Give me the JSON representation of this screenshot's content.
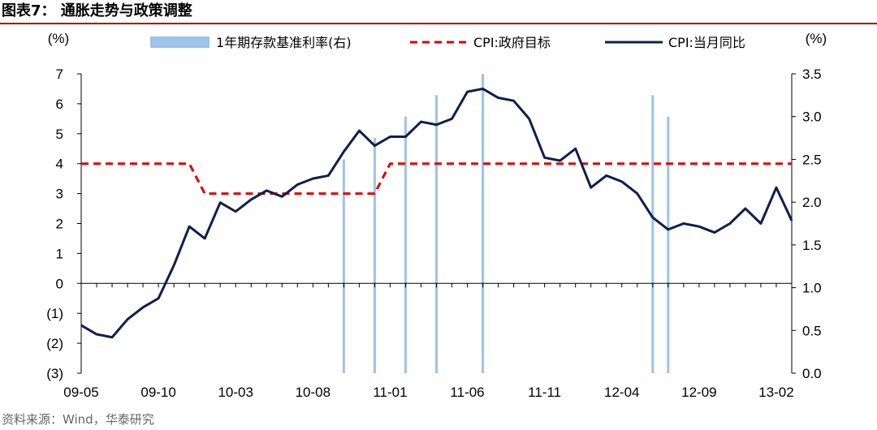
{
  "header": {
    "title": "图表7：  通胀走势与政策调整"
  },
  "footer": {
    "source": "资料来源：Wind，华泰研究"
  },
  "chart_data": {
    "type": "line",
    "left_unit": "(%)",
    "right_unit": "(%)",
    "left_axis": {
      "min": -3,
      "max": 7,
      "ticks": [
        "(3)",
        "(2)",
        "(1)",
        "0",
        "1",
        "2",
        "3",
        "4",
        "5",
        "6",
        "7"
      ]
    },
    "right_axis": {
      "min": 0.0,
      "max": 3.5,
      "ticks": [
        "0.0",
        "0.5",
        "1.0",
        "1.5",
        "2.0",
        "2.5",
        "3.0",
        "3.5"
      ]
    },
    "x_tick_labels": [
      "09-05",
      "09-10",
      "10-03",
      "10-08",
      "11-01",
      "11-06",
      "11-11",
      "12-04",
      "12-09",
      "13-02"
    ],
    "series": [
      {
        "name": "1年期存款基准利率(右)",
        "axis": "right",
        "style": "bar",
        "color": "#9dc3e6",
        "points": [
          {
            "x": "10-10",
            "y": 2.5
          },
          {
            "x": "10-12",
            "y": 2.75
          },
          {
            "x": "11-02",
            "y": 3.0
          },
          {
            "x": "11-04",
            "y": 3.25
          },
          {
            "x": "11-07",
            "y": 3.5
          },
          {
            "x": "12-06",
            "y": 3.25
          },
          {
            "x": "12-07",
            "y": 3.0
          }
        ]
      },
      {
        "name": "CPI:政府目标",
        "axis": "left",
        "style": "dashed",
        "color": "#e00000",
        "points": [
          {
            "x": "09-05",
            "y": 4.0
          },
          {
            "x": "09-12",
            "y": 4.0
          },
          {
            "x": "10-01",
            "y": 3.0
          },
          {
            "x": "10-12",
            "y": 3.0
          },
          {
            "x": "11-01",
            "y": 4.0
          },
          {
            "x": "13-03",
            "y": 4.0
          }
        ]
      },
      {
        "name": "CPI:当月同比",
        "axis": "left",
        "style": "solid",
        "color": "#0d1f4c",
        "points": [
          {
            "x": "09-05",
            "y": -1.4
          },
          {
            "x": "09-06",
            "y": -1.7
          },
          {
            "x": "09-07",
            "y": -1.8
          },
          {
            "x": "09-08",
            "y": -1.2
          },
          {
            "x": "09-09",
            "y": -0.8
          },
          {
            "x": "09-10",
            "y": -0.5
          },
          {
            "x": "09-11",
            "y": 0.6
          },
          {
            "x": "09-12",
            "y": 1.9
          },
          {
            "x": "10-01",
            "y": 1.5
          },
          {
            "x": "10-02",
            "y": 2.7
          },
          {
            "x": "10-03",
            "y": 2.4
          },
          {
            "x": "10-04",
            "y": 2.8
          },
          {
            "x": "10-05",
            "y": 3.1
          },
          {
            "x": "10-06",
            "y": 2.9
          },
          {
            "x": "10-07",
            "y": 3.3
          },
          {
            "x": "10-08",
            "y": 3.5
          },
          {
            "x": "10-09",
            "y": 3.6
          },
          {
            "x": "10-10",
            "y": 4.4
          },
          {
            "x": "10-11",
            "y": 5.1
          },
          {
            "x": "10-12",
            "y": 4.6
          },
          {
            "x": "11-01",
            "y": 4.9
          },
          {
            "x": "11-02",
            "y": 4.9
          },
          {
            "x": "11-03",
            "y": 5.4
          },
          {
            "x": "11-04",
            "y": 5.3
          },
          {
            "x": "11-05",
            "y": 5.5
          },
          {
            "x": "11-06",
            "y": 6.4
          },
          {
            "x": "11-07",
            "y": 6.5
          },
          {
            "x": "11-08",
            "y": 6.2
          },
          {
            "x": "11-09",
            "y": 6.1
          },
          {
            "x": "11-10",
            "y": 5.5
          },
          {
            "x": "11-11",
            "y": 4.2
          },
          {
            "x": "11-12",
            "y": 4.1
          },
          {
            "x": "12-01",
            "y": 4.5
          },
          {
            "x": "12-02",
            "y": 3.2
          },
          {
            "x": "12-03",
            "y": 3.6
          },
          {
            "x": "12-04",
            "y": 3.4
          },
          {
            "x": "12-05",
            "y": 3.0
          },
          {
            "x": "12-06",
            "y": 2.2
          },
          {
            "x": "12-07",
            "y": 1.8
          },
          {
            "x": "12-08",
            "y": 2.0
          },
          {
            "x": "12-09",
            "y": 1.9
          },
          {
            "x": "12-10",
            "y": 1.7
          },
          {
            "x": "12-11",
            "y": 2.0
          },
          {
            "x": "12-12",
            "y": 2.5
          },
          {
            "x": "13-01",
            "y": 2.0
          },
          {
            "x": "13-02",
            "y": 3.2
          },
          {
            "x": "13-03",
            "y": 2.1
          }
        ]
      }
    ],
    "legend_placement": "top",
    "grid": false
  }
}
